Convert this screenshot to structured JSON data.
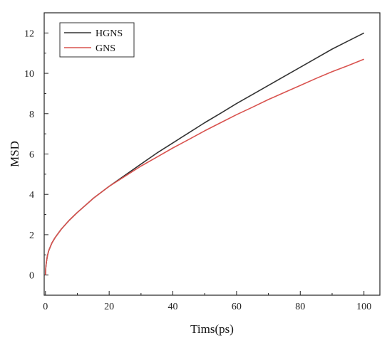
{
  "chart_data": {
    "type": "line",
    "title": "",
    "xlabel": "Tims(ps)",
    "ylabel": "MSD",
    "xlim": [
      -0.4,
      105
    ],
    "ylim": [
      -1,
      13
    ],
    "xticks": [
      0,
      20,
      40,
      60,
      80,
      100
    ],
    "yticks": [
      0,
      2,
      4,
      6,
      8,
      10,
      12
    ],
    "grid": false,
    "legend_position": "top-left",
    "series": [
      {
        "name": "HGNS",
        "color": "#333333",
        "x": [
          0,
          0.1,
          0.3,
          0.6,
          1,
          2,
          3,
          5,
          7.5,
          10,
          15,
          20,
          25,
          30,
          35,
          40,
          45,
          50,
          55,
          60,
          65,
          70,
          75,
          80,
          85,
          90,
          95,
          100
        ],
        "y": [
          0,
          0.35,
          0.65,
          0.95,
          1.2,
          1.58,
          1.85,
          2.28,
          2.72,
          3.1,
          3.8,
          4.4,
          4.95,
          5.5,
          6.05,
          6.55,
          7.05,
          7.55,
          8.02,
          8.5,
          8.95,
          9.4,
          9.85,
          10.3,
          10.75,
          11.2,
          11.6,
          12.0
        ]
      },
      {
        "name": "GNS",
        "color": "#d9534f",
        "x": [
          0,
          0.1,
          0.3,
          0.6,
          1,
          2,
          3,
          5,
          7.5,
          10,
          15,
          20,
          25,
          30,
          35,
          40,
          45,
          50,
          55,
          60,
          65,
          70,
          75,
          80,
          85,
          90,
          95,
          100
        ],
        "y": [
          0,
          0.35,
          0.65,
          0.95,
          1.2,
          1.58,
          1.85,
          2.28,
          2.72,
          3.1,
          3.8,
          4.4,
          4.9,
          5.4,
          5.85,
          6.3,
          6.72,
          7.15,
          7.55,
          7.95,
          8.32,
          8.7,
          9.05,
          9.4,
          9.75,
          10.08,
          10.38,
          10.7
        ]
      }
    ]
  }
}
